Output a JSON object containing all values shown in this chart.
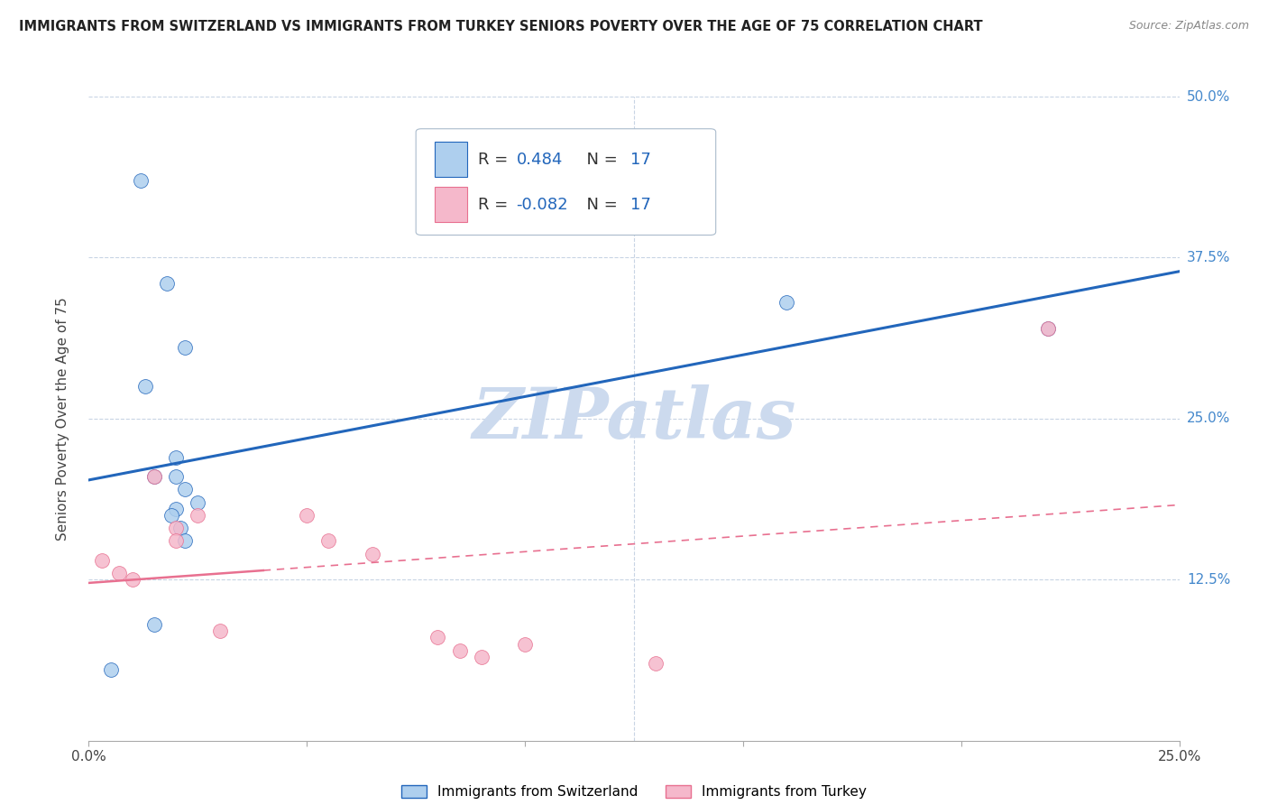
{
  "title": "IMMIGRANTS FROM SWITZERLAND VS IMMIGRANTS FROM TURKEY SENIORS POVERTY OVER THE AGE OF 75 CORRELATION CHART",
  "source": "Source: ZipAtlas.com",
  "ylabel": "Seniors Poverty Over the Age of 75",
  "xlim": [
    0.0,
    0.25
  ],
  "ylim": [
    0.0,
    0.5
  ],
  "r_switzerland": 0.484,
  "r_turkey": -0.082,
  "n": 17,
  "switzerland_color": "#aecfee",
  "turkey_color": "#f5b8cb",
  "line_switzerland_color": "#2266bb",
  "line_turkey_color": "#e87090",
  "watermark": "ZIPatlas",
  "watermark_color": "#ccdaee",
  "switzerland_points_x": [
    0.012,
    0.022,
    0.018,
    0.02,
    0.02,
    0.022,
    0.025,
    0.02,
    0.019,
    0.021,
    0.022,
    0.013,
    0.015,
    0.015,
    0.16,
    0.22,
    0.005
  ],
  "switzerland_points_y": [
    0.435,
    0.305,
    0.355,
    0.22,
    0.205,
    0.195,
    0.185,
    0.18,
    0.175,
    0.165,
    0.155,
    0.275,
    0.205,
    0.09,
    0.34,
    0.32,
    0.055
  ],
  "turkey_points_x": [
    0.003,
    0.007,
    0.01,
    0.015,
    0.02,
    0.02,
    0.025,
    0.03,
    0.05,
    0.055,
    0.065,
    0.08,
    0.085,
    0.09,
    0.1,
    0.13,
    0.22
  ],
  "turkey_points_y": [
    0.14,
    0.13,
    0.125,
    0.205,
    0.165,
    0.155,
    0.175,
    0.085,
    0.175,
    0.155,
    0.145,
    0.08,
    0.07,
    0.065,
    0.075,
    0.06,
    0.32
  ],
  "marker_size": 130,
  "bg_color": "#ffffff",
  "grid_color": "#c8d4e4",
  "axis_right_color": "#4488cc",
  "ytick_positions": [
    0.0,
    0.125,
    0.25,
    0.375,
    0.5
  ],
  "ytick_labels_right": [
    "",
    "12.5%",
    "25.0%",
    "37.5%",
    "50.0%"
  ],
  "xtick_positions": [
    0.0,
    0.05,
    0.1,
    0.15,
    0.2,
    0.25
  ],
  "xtick_labels": [
    "0.0%",
    "",
    "",
    "",
    "",
    "25.0%"
  ]
}
